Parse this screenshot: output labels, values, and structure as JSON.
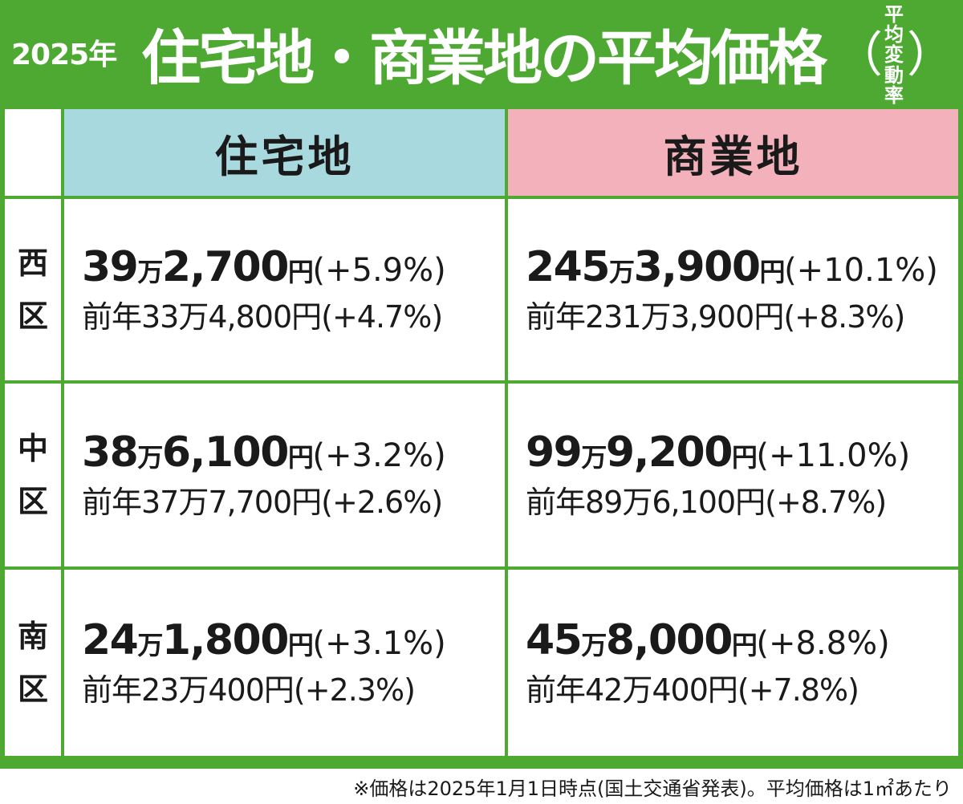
{
  "header": {
    "year": "2025年",
    "title": "住宅地・商業地の平均価格",
    "subtitle_open": "（",
    "subtitle_line1": "平均",
    "subtitle_line2": "変動率",
    "subtitle_close": "）"
  },
  "columns": {
    "residential": "住宅地",
    "commercial": "商業地"
  },
  "rows": [
    {
      "ward_char1": "西",
      "ward_char2": "区",
      "res": {
        "man": "39",
        "man_unit": "万",
        "rest": "2,700",
        "yen": "円",
        "pct": "(+5.9%)",
        "prev": "前年33万4,800円(+4.7%)"
      },
      "com": {
        "man": "245",
        "man_unit": "万",
        "rest": "3,900",
        "yen": "円",
        "pct": "(+10.1%)",
        "prev": "前年231万3,900円(+8.3%)"
      }
    },
    {
      "ward_char1": "中",
      "ward_char2": "区",
      "res": {
        "man": "38",
        "man_unit": "万",
        "rest": "6,100",
        "yen": "円",
        "pct": "(+3.2%)",
        "prev": "前年37万7,700円(+2.6%)"
      },
      "com": {
        "man": "99",
        "man_unit": "万",
        "rest": "9,200",
        "yen": "円",
        "pct": "(+11.0%)",
        "prev": "前年89万6,100円(+8.7%)"
      }
    },
    {
      "ward_char1": "南",
      "ward_char2": "区",
      "res": {
        "man": "24",
        "man_unit": "万",
        "rest": "1,800",
        "yen": "円",
        "pct": "(+3.1%)",
        "prev": "前年23万400円(+2.3%)"
      },
      "com": {
        "man": "45",
        "man_unit": "万",
        "rest": "8,000",
        "yen": "円",
        "pct": "(+8.8%)",
        "prev": "前年42万400円(+7.8%)"
      }
    }
  ],
  "footnote": "※価格は2025年1月1日時点(国土交通省発表)。平均価格は1㎡あたり",
  "colors": {
    "frame_green": "#4ea933",
    "residential_header": "#a7d9df",
    "commercial_header": "#f2b1bb"
  }
}
